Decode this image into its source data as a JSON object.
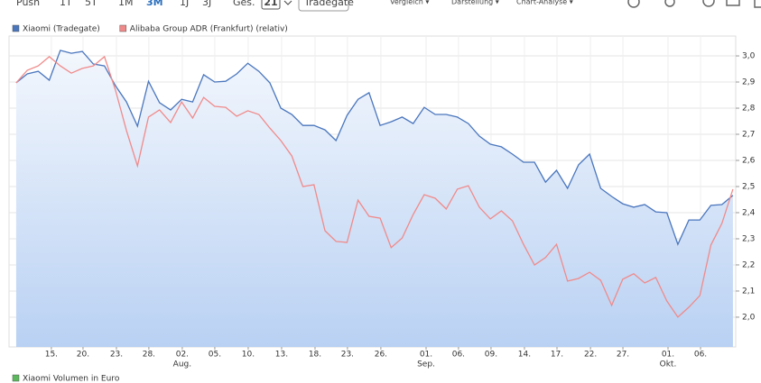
{
  "toolbar": {
    "ranges": [
      "Push",
      "1T",
      "5T",
      "1M",
      "3M",
      "1J",
      "3J",
      "Ges."
    ],
    "selected_range": "3M",
    "calendar": "21",
    "exchange": "Tradegate",
    "menus": [
      "Vergleich ▾",
      "Darstellung ▾",
      "Chart-Analyse ▾"
    ]
  },
  "chart_data": {
    "type": "line",
    "series": [
      {
        "name": "Xiaomi (Tradegate)",
        "color": "#4a76bd",
        "area": true,
        "values": [
          2.897,
          2.931,
          2.941,
          2.907,
          3.021,
          3.01,
          3.017,
          2.969,
          2.962,
          2.886,
          2.824,
          2.731,
          2.903,
          2.821,
          2.793,
          2.834,
          2.824,
          2.928,
          2.9,
          2.903,
          2.931,
          2.972,
          2.941,
          2.897,
          2.8,
          2.776,
          2.734,
          2.734,
          2.717,
          2.676,
          2.772,
          2.834,
          2.859,
          2.734,
          2.748,
          2.766,
          2.741,
          2.803,
          2.776,
          2.776,
          2.766,
          2.741,
          2.693,
          2.662,
          2.652,
          2.624,
          2.593,
          2.593,
          2.517,
          2.562,
          2.493,
          2.583,
          2.624,
          2.493,
          2.462,
          2.434,
          2.421,
          2.431,
          2.403,
          2.4,
          2.279,
          2.372,
          2.372,
          2.428,
          2.431,
          2.466
        ]
      },
      {
        "name": "Alibaba Group ADR (Frankfurt) (relativ)",
        "color": "#f08a8a",
        "area": false,
        "values": [
          2.897,
          2.945,
          2.962,
          2.997,
          2.962,
          2.934,
          2.952,
          2.962,
          2.997,
          2.869,
          2.714,
          2.579,
          2.766,
          2.793,
          2.745,
          2.824,
          2.762,
          2.841,
          2.807,
          2.803,
          2.769,
          2.79,
          2.776,
          2.724,
          2.676,
          2.617,
          2.5,
          2.507,
          2.331,
          2.29,
          2.286,
          2.448,
          2.386,
          2.379,
          2.266,
          2.303,
          2.393,
          2.469,
          2.455,
          2.414,
          2.49,
          2.503,
          2.421,
          2.376,
          2.407,
          2.369,
          2.279,
          2.2,
          2.228,
          2.279,
          2.138,
          2.148,
          2.172,
          2.141,
          2.045,
          2.145,
          2.166,
          2.131,
          2.152,
          2.062,
          2.0,
          2.038,
          2.083,
          2.276,
          2.359,
          2.49
        ]
      }
    ],
    "xlim": [
      -0.65,
      65.25
    ],
    "xticks": [
      {
        "value": 3.19,
        "label": "15."
      },
      {
        "value": 6.06,
        "label": "20."
      },
      {
        "value": 9.09,
        "label": "23."
      },
      {
        "value": 12.03,
        "label": "28."
      },
      {
        "value": 15.06,
        "label": "02."
      },
      {
        "value": 18.01,
        "label": "05."
      },
      {
        "value": 21.04,
        "label": "10."
      },
      {
        "value": 24.07,
        "label": "13."
      },
      {
        "value": 27.1,
        "label": "18."
      },
      {
        "value": 30.04,
        "label": "23."
      },
      {
        "value": 33.07,
        "label": "26."
      },
      {
        "value": 37.17,
        "label": "01."
      },
      {
        "value": 40.11,
        "label": "06."
      },
      {
        "value": 43.06,
        "label": "09."
      },
      {
        "value": 46.09,
        "label": "14."
      },
      {
        "value": 49.04,
        "label": "17."
      },
      {
        "value": 52.08,
        "label": "22."
      },
      {
        "value": 55.02,
        "label": "27."
      },
      {
        "value": 59.11,
        "label": "01."
      },
      {
        "value": 62.06,
        "label": "06."
      }
    ],
    "xmonths": [
      {
        "value": 15.06,
        "label": "Aug."
      },
      {
        "value": 37.17,
        "label": "Sep."
      },
      {
        "value": 59.11,
        "label": "Okt."
      }
    ],
    "ylim": [
      1.886,
      3.076
    ],
    "yticks": [
      {
        "value": 2.0,
        "label": "2,0"
      },
      {
        "value": 2.1,
        "label": "2,1"
      },
      {
        "value": 2.2,
        "label": "2,2"
      },
      {
        "value": 2.3,
        "label": "2,3"
      },
      {
        "value": 2.4,
        "label": "2,4"
      },
      {
        "value": 2.5,
        "label": "2,5"
      },
      {
        "value": 2.6,
        "label": "2,6"
      },
      {
        "value": 2.7,
        "label": "2,7"
      },
      {
        "value": 2.8,
        "label": "2,8"
      },
      {
        "value": 2.9,
        "label": "2,9"
      },
      {
        "value": 3.0,
        "label": "3,0"
      }
    ],
    "grid": true,
    "volume_legend": {
      "name": "Xiaomi Volumen in Euro",
      "color": "#5cb85c"
    }
  }
}
